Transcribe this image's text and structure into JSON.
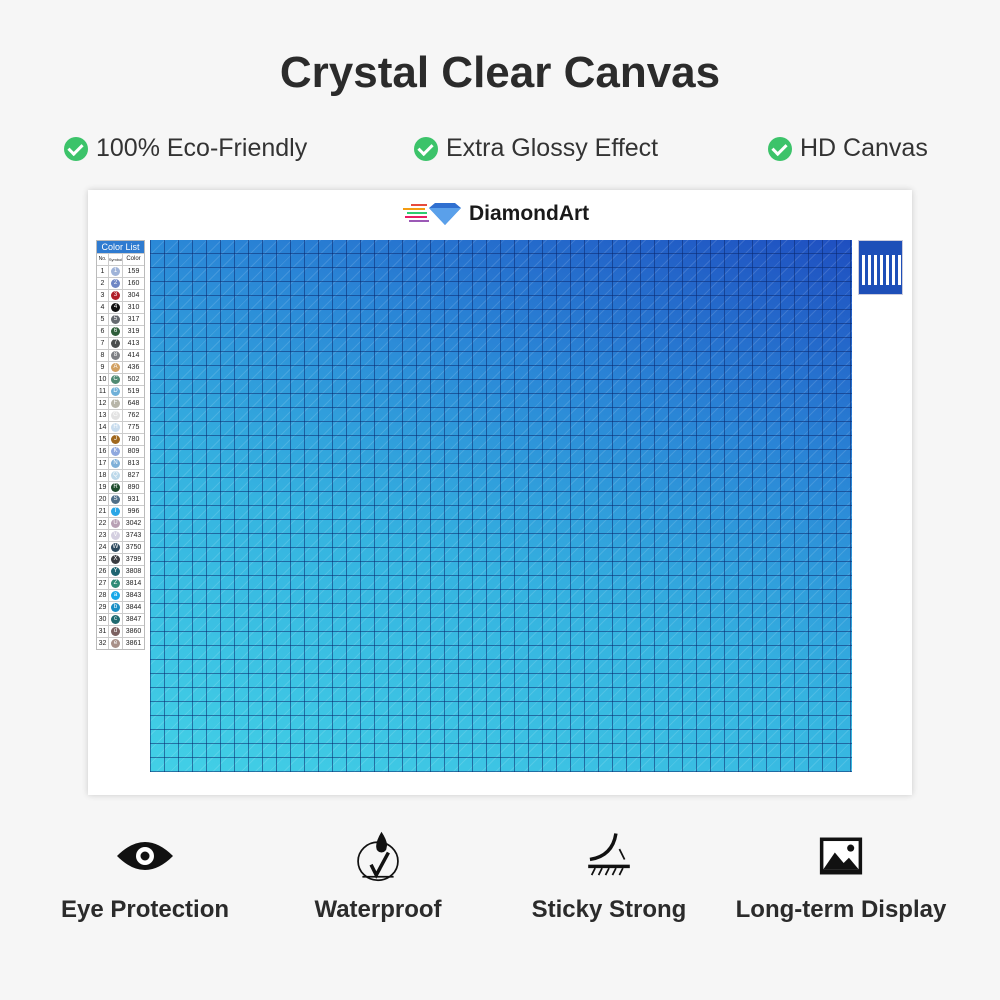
{
  "title": "Crystal Clear Canvas",
  "features": [
    "100% Eco-Friendly",
    "Extra Glossy Effect",
    "HD Canvas"
  ],
  "card": {
    "logo_text": "DiamondArt",
    "color_list": {
      "title": "Color List",
      "headers": [
        "No.",
        "Symbol",
        "Color"
      ],
      "rows": [
        [
          "1",
          "1",
          "159",
          "#9fb3d8"
        ],
        [
          "2",
          "2",
          "160",
          "#6f86c4"
        ],
        [
          "3",
          "3",
          "304",
          "#b01e2a"
        ],
        [
          "4",
          "4",
          "310",
          "#111111"
        ],
        [
          "5",
          "5",
          "317",
          "#666a70"
        ],
        [
          "6",
          "6",
          "319",
          "#2f5e3a"
        ],
        [
          "7",
          "7",
          "413",
          "#4a4e4e"
        ],
        [
          "8",
          "8",
          "414",
          "#7d7f84"
        ],
        [
          "9",
          "A",
          "436",
          "#d2a060"
        ],
        [
          "10",
          "C",
          "502",
          "#4f8a72"
        ],
        [
          "11",
          "D",
          "519",
          "#6fb0d8"
        ],
        [
          "12",
          "F",
          "648",
          "#b7b5a8"
        ],
        [
          "13",
          "G",
          "762",
          "#e2e2e2"
        ],
        [
          "14",
          "H",
          "775",
          "#c8dcee"
        ],
        [
          "15",
          "J",
          "780",
          "#a0681e"
        ],
        [
          "16",
          "K",
          "809",
          "#8fa8de"
        ],
        [
          "17",
          "N",
          "813",
          "#7fb0d8"
        ],
        [
          "18",
          "Q",
          "827",
          "#bcd8ea"
        ],
        [
          "19",
          "R",
          "890",
          "#1f4d2c"
        ],
        [
          "20",
          "S",
          "931",
          "#4f6f88"
        ],
        [
          "21",
          "T",
          "996",
          "#2aa6e6"
        ],
        [
          "22",
          "U",
          "3042",
          "#b8a0b4"
        ],
        [
          "23",
          "V",
          "3743",
          "#d4cfe0"
        ],
        [
          "24",
          "W",
          "3750",
          "#2d4a5e"
        ],
        [
          "25",
          "X",
          "3799",
          "#3a3c40"
        ],
        [
          "26",
          "Y",
          "3808",
          "#1e6470"
        ],
        [
          "27",
          "Z",
          "3814",
          "#2f8c76"
        ],
        [
          "28",
          "a",
          "3843",
          "#18a8e8"
        ],
        [
          "29",
          "b",
          "3844",
          "#1a8ec4"
        ],
        [
          "30",
          "c",
          "3847",
          "#1f6a70"
        ],
        [
          "31",
          "d",
          "3860",
          "#7a6060"
        ],
        [
          "32",
          "e",
          "3861",
          "#a89088"
        ]
      ]
    }
  },
  "bottom_features": [
    {
      "label": "Eye Protection",
      "icon": "eye-icon"
    },
    {
      "label": "Waterproof",
      "icon": "waterproof-icon"
    },
    {
      "label": "Sticky Strong",
      "icon": "sticky-icon"
    },
    {
      "label": "Long-term Display",
      "icon": "image-icon"
    }
  ],
  "colors": {
    "check": "#3cc36a",
    "color_list_header": "#2f7bd0",
    "canvas_light": "#42d0e6",
    "canvas_dark": "#1f4fc0"
  }
}
